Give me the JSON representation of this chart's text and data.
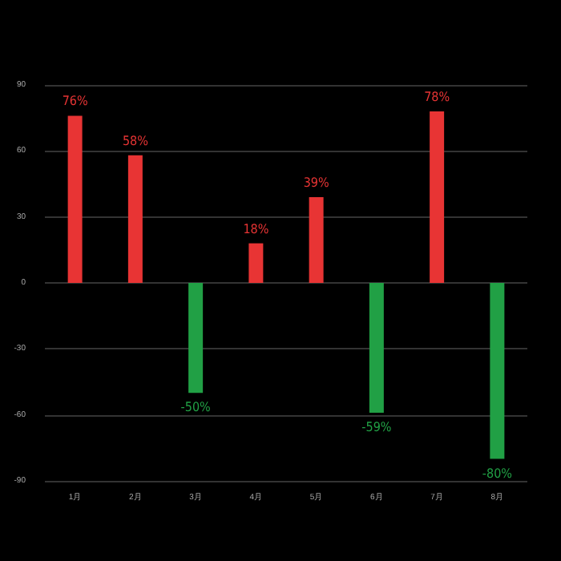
{
  "chart_data": {
    "type": "bar",
    "categories": [
      "1月",
      "2月",
      "3月",
      "4月",
      "5月",
      "6月",
      "7月",
      "8月"
    ],
    "values": [
      76,
      58,
      -50,
      18,
      39,
      -59,
      78,
      -80
    ],
    "colors": [
      "#e83434",
      "#e83434",
      "#21a045",
      "#e83434",
      "#e83434",
      "#21a045",
      "#e83434",
      "#21a045"
    ],
    "value_labels": [
      "76%",
      "58%",
      "-50%",
      "18%",
      "39%",
      "-59%",
      "78%",
      "-80%"
    ],
    "ylim": [
      -90,
      90
    ],
    "yticks": [
      -90,
      -60,
      -30,
      0,
      30,
      60,
      90
    ],
    "grid": "y"
  }
}
